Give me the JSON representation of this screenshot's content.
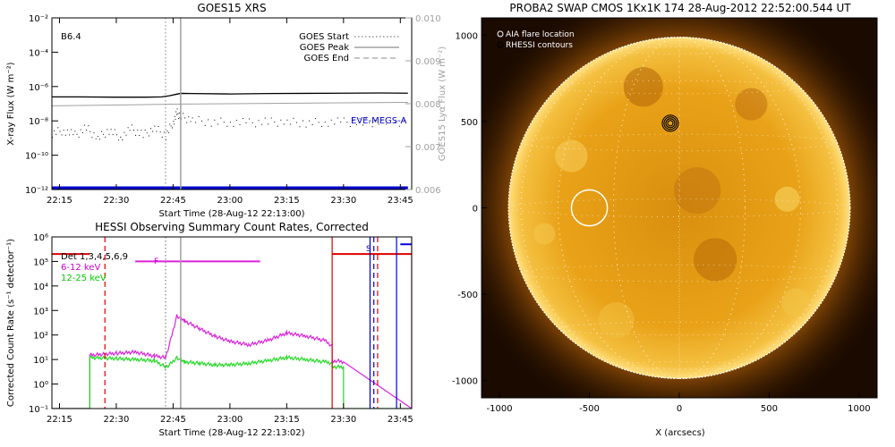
{
  "chart_data": [
    {
      "type": "line",
      "title": "GOES15 XRS",
      "xlabel": "Start Time (28-Aug-12 22:13:00)",
      "ylabel": "X-ray Flux (W m⁻²)",
      "y2label": "GOES15 Lyα Flux (W m⁻²)",
      "annotation": "B6.4",
      "xticks": [
        "22:15",
        "22:30",
        "22:45",
        "23:00",
        "23:15",
        "23:30",
        "23:45"
      ],
      "xlim": [
        "22:13",
        "23:48"
      ],
      "yscale": "log",
      "ylim": [
        1e-12,
        0.01
      ],
      "yticks": [
        "10⁻²",
        "10⁻⁴",
        "10⁻⁶",
        "10⁻⁸",
        "10⁻¹⁰",
        "10⁻¹²"
      ],
      "y2lim": [
        0.006,
        0.01
      ],
      "y2ticks": [
        "0.010",
        "0.009",
        "0.008",
        "0.007",
        "0.006"
      ],
      "legend": [
        {
          "label": "GOES Start",
          "style": "dotted"
        },
        {
          "label": "GOES Peak",
          "style": "solid"
        },
        {
          "label": "GOES End",
          "style": "dashed"
        }
      ],
      "legend_position": "top-right",
      "markers": {
        "start": "22:43",
        "peak": "22:47"
      },
      "eve_label": "EVE-MEGS-A",
      "colors": {
        "eve": "#0000cc",
        "markers": "#a0a0a0"
      },
      "series": [
        {
          "key": "long",
          "x": [
            "22:13",
            "22:20",
            "22:30",
            "22:38",
            "22:42",
            "22:44",
            "22:46",
            "22:47",
            "22:50",
            "23:00",
            "23:10",
            "23:20",
            "23:30",
            "23:40",
            "23:47"
          ],
          "y": [
            2.5e-07,
            2.5e-07,
            2.4e-07,
            2.4e-07,
            2.5e-07,
            2.9e-07,
            3.6e-07,
            4e-07,
            3.9e-07,
            3.7e-07,
            3.9e-07,
            4e-07,
            4.1e-07,
            4.2e-07,
            4.1e-07
          ]
        },
        {
          "key": "short",
          "x": [
            "22:13",
            "22:16",
            "22:19",
            "22:22",
            "22:25",
            "22:28",
            "22:31",
            "22:34",
            "22:37",
            "22:40",
            "22:43",
            "22:45",
            "22:46",
            "22:47",
            "22:50",
            "22:55",
            "23:00",
            "23:05",
            "23:10",
            "23:15",
            "23:20",
            "23:25",
            "23:30",
            "23:35",
            "23:40",
            "23:47"
          ],
          "y": [
            2e-09,
            3e-09,
            1.5e-09,
            4e-09,
            1e-09,
            3e-09,
            1.2e-09,
            3.5e-09,
            1.5e-09,
            4e-09,
            1.5e-09,
            1e-08,
            3e-08,
            1.8e-08,
            1.2e-08,
            9e-09,
            9e-09,
            8e-09,
            9e-09,
            9e-09,
            8e-09,
            9e-09,
            9e-09,
            8e-09,
            9e-09,
            9e-09
          ]
        },
        {
          "key": "lya",
          "x": [
            "22:13",
            "22:30",
            "22:45",
            "23:00",
            "23:15",
            "23:30",
            "23:47"
          ],
          "y": [
            0.00795,
            0.00797,
            0.00799,
            0.008,
            0.00801,
            0.00802,
            0.00803
          ]
        },
        {
          "key": "eve",
          "x": [
            "22:13",
            "23:47"
          ],
          "y": [
            1e-12,
            1e-12
          ]
        }
      ]
    },
    {
      "type": "line",
      "title": "HESSI Observing Summary Count Rates, Corrected",
      "xlabel": "Start Time (28-Aug-12 22:13:02)",
      "ylabel": "Corrected Count Rate (s⁻¹ detector⁻¹)",
      "xticks": [
        "22:15",
        "22:30",
        "22:45",
        "23:00",
        "23:15",
        "23:30",
        "23:45"
      ],
      "xlim": [
        "22:13",
        "23:48"
      ],
      "yscale": "log",
      "ylim": [
        0.1,
        1000000.0
      ],
      "yticks": [
        "10⁶",
        "10⁵",
        "10⁴",
        "10³",
        "10²",
        "10¹",
        "10⁰",
        "10⁻¹"
      ],
      "legend": [
        {
          "label": "Det 1,3,4,5,6,9",
          "color": "#000000"
        },
        {
          "label": "6-12 keV",
          "color": "#cc00cc"
        },
        {
          "label": "12-25 keV",
          "color": "#00cc00"
        }
      ],
      "legend_position": "top-left",
      "flag_labels": {
        "F": "F",
        "S": "S"
      },
      "colors": {
        "low": "#dd22dd",
        "high": "#22dd22",
        "night": "#dd0000",
        "saa": "#0000dd"
      },
      "series": [
        {
          "key": "low",
          "x": [
            "22:13",
            "22:23",
            "22:23",
            "22:30",
            "22:35",
            "22:40",
            "22:43",
            "22:44",
            "22:46",
            "22:48",
            "22:52",
            "22:56",
            "23:00",
            "23:05",
            "23:10",
            "23:15",
            "23:20",
            "23:25",
            "23:27",
            "23:27",
            "23:28",
            "23:30",
            "23:48"
          ],
          "y": [
            0.1,
            0.1,
            15,
            18,
            20,
            14,
            12,
            40,
            600,
            380,
            180,
            90,
            55,
            40,
            60,
            120,
            90,
            60,
            35,
            8,
            9,
            8,
            0.1
          ]
        },
        {
          "key": "high",
          "x": [
            "22:13",
            "22:23",
            "22:23",
            "22:30",
            "22:35",
            "22:40",
            "22:43",
            "22:44",
            "22:46",
            "22:48",
            "22:52",
            "22:56",
            "23:00",
            "23:05",
            "23:10",
            "23:15",
            "23:20",
            "23:25",
            "23:27",
            "23:27",
            "23:30",
            "23:30",
            "23:48"
          ],
          "y": [
            0.1,
            0.1,
            12,
            11,
            10,
            9,
            5,
            6,
            12,
            8,
            7,
            6,
            6,
            7,
            9,
            12,
            10,
            8,
            7,
            5,
            5,
            0.1,
            0.1
          ]
        },
        {
          "key": "night",
          "x": [
            "22:13",
            "22:23",
            "23:27",
            "23:48"
          ],
          "y": [
            200000.0,
            200000.0,
            200000.0,
            200000.0
          ]
        },
        {
          "key": "flare_flag",
          "x": [
            "22:35",
            "23:08"
          ],
          "y": [
            100000.0,
            100000.0
          ]
        },
        {
          "key": "saa_flag",
          "x": [
            "23:45",
            "23:48"
          ],
          "y": [
            500000.0,
            500000.0
          ]
        }
      ],
      "vlines": {
        "dashed_red": [
          "22:27",
          "23:39"
        ],
        "dotted_gray": "22:43",
        "solid_gray": "22:47",
        "solid_red": [
          "23:27",
          "23:48"
        ],
        "solid_blue": [
          "23:37",
          "23:44"
        ],
        "dashed_blue": "23:38"
      }
    },
    {
      "type": "heatmap",
      "title": "PROBA2 SWAP CMOS 1Kx1K 174 28-Aug-2012 22:52:00.544 UT",
      "xlabel": "X (arcsecs)",
      "xlim": [
        -1100,
        1100
      ],
      "ylim": [
        -1100,
        1100
      ],
      "xticks": [
        -1000,
        -500,
        0,
        500,
        1000
      ],
      "yticks": [
        1000,
        500,
        0,
        -500,
        -1000
      ],
      "legend": [
        {
          "label": "AIA flare location",
          "symbol": "circle"
        },
        {
          "label": "RHESSI contours",
          "symbol": "circle"
        }
      ],
      "legend_position": "top-left",
      "solar_radius": 950,
      "aia_flare": {
        "x": -500,
        "y": 0,
        "r": 100
      },
      "rhessi": {
        "x": -50,
        "y": 490
      },
      "colors": {
        "disk_center": "#e8a010",
        "disk_edge": "#7a3f00",
        "background": "#1a0a00",
        "circle": "#ffffff"
      }
    }
  ]
}
